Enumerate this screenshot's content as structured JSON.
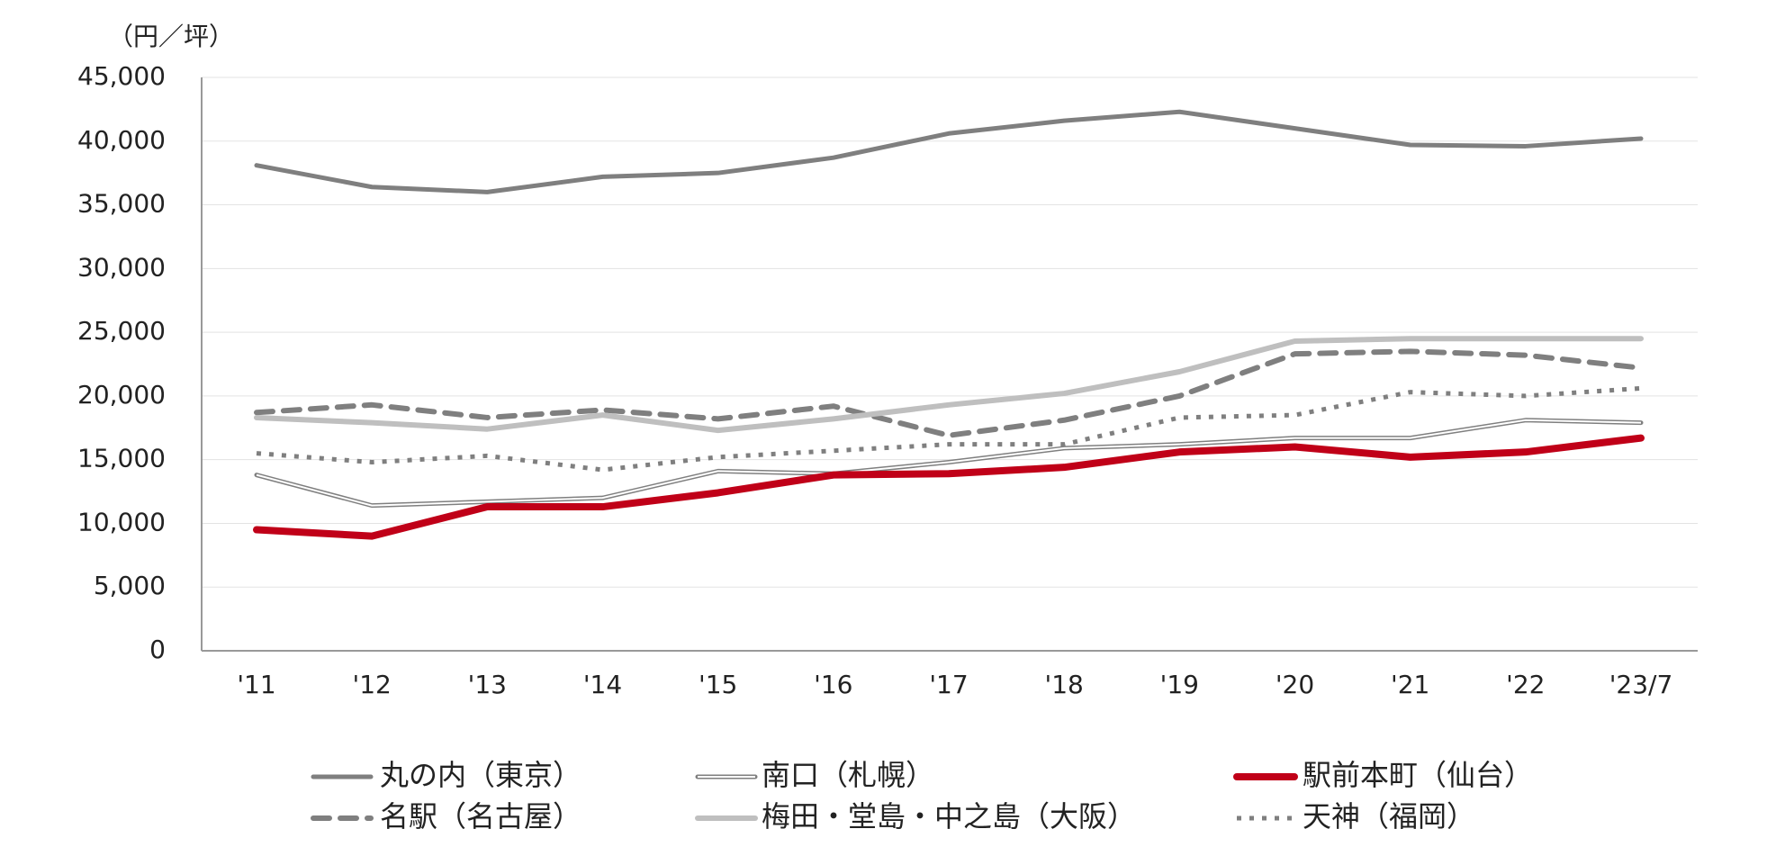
{
  "chart_data": {
    "type": "line",
    "y_label": "（円／坪）",
    "categories": [
      "'11",
      "'12",
      "'13",
      "'14",
      "'15",
      "'16",
      "'17",
      "'18",
      "'19",
      "'20",
      "'21",
      "'22",
      "'23/7"
    ],
    "ylim": [
      0,
      45000
    ],
    "yticks": [
      0,
      {
        "value": 5000,
        "label": "5,000"
      },
      {
        "value": 10000,
        "label": "10,000"
      },
      {
        "value": 15000,
        "label": "15,000"
      },
      {
        "value": 20000,
        "label": "20,000"
      },
      {
        "value": 25000,
        "label": "25,000"
      },
      {
        "value": 30000,
        "label": "30,000"
      },
      {
        "value": 35000,
        "label": "35,000"
      },
      {
        "value": 40000,
        "label": "40,000"
      },
      {
        "value": 45000,
        "label": "45,000"
      }
    ],
    "grid": true,
    "legend": "bottom",
    "series": [
      {
        "name": "丸の内（東京）",
        "color": "#7f7f7f",
        "style": "solid",
        "width": 5,
        "values": [
          38100,
          36400,
          36000,
          37200,
          37500,
          38700,
          40600,
          41600,
          42300,
          41000,
          39700,
          39600,
          40200
        ]
      },
      {
        "name": "南口（札幌）",
        "color": "#7f7f7f",
        "style": "double",
        "width": 5,
        "values": [
          13800,
          11400,
          11700,
          12000,
          14100,
          13900,
          14800,
          15900,
          16200,
          16700,
          16700,
          18100,
          17900
        ]
      },
      {
        "name": "駅前本町（仙台）",
        "color": "#c00018",
        "style": "solid",
        "width": 8,
        "values": [
          9500,
          9000,
          11300,
          11300,
          12400,
          13800,
          13900,
          14400,
          15600,
          16000,
          15200,
          15600,
          16700
        ]
      },
      {
        "name": "名駅（名古屋）",
        "color": "#7f7f7f",
        "style": "dashed",
        "width": 6,
        "values": [
          18700,
          19300,
          18300,
          18900,
          18200,
          19200,
          16900,
          18100,
          20000,
          23300,
          23500,
          23200,
          22200
        ]
      },
      {
        "name": "梅田・堂島・中之島（大阪）",
        "color": "#bfbfbf",
        "style": "solid",
        "width": 6,
        "values": [
          18300,
          17900,
          17400,
          18500,
          17300,
          18200,
          19300,
          20200,
          21900,
          24300,
          24500,
          24500,
          24500
        ]
      },
      {
        "name": "天神（福岡）",
        "color": "#7f7f7f",
        "style": "dotted",
        "width": 5,
        "values": [
          15500,
          14800,
          15300,
          14200,
          15200,
          15700,
          16200,
          16200,
          18300,
          18500,
          20300,
          20000,
          20600
        ]
      }
    ]
  }
}
